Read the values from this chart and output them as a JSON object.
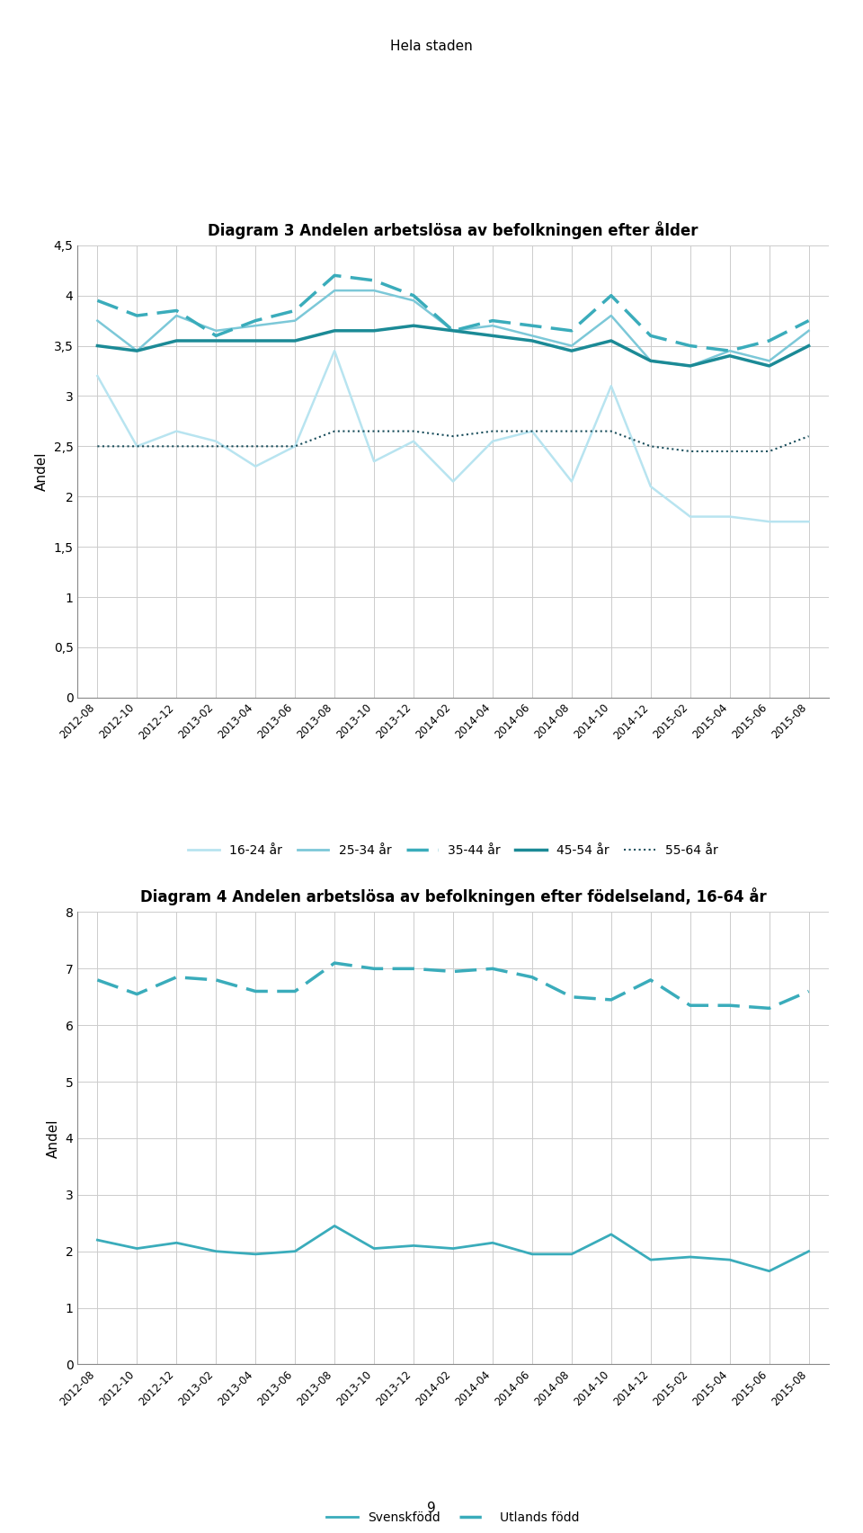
{
  "title_main": "Hela staden",
  "page_number": "9",
  "chart1_title": "Diagram 3 Andelen arbetslösa av befolkningen efter ålder",
  "chart1_ylabel": "Andel",
  "chart1_ylim": [
    0,
    4.5
  ],
  "chart1_yticks": [
    0,
    0.5,
    1,
    1.5,
    2,
    2.5,
    3,
    3.5,
    4,
    4.5
  ],
  "chart1_ytick_labels": [
    "0",
    "0,5",
    "1",
    "1,5",
    "2",
    "2,5",
    "3",
    "3,5",
    "4",
    "4,5"
  ],
  "chart2_title": "Diagram 4 Andelen arbetslösa av befolkningen efter födelseland, 16-64 år",
  "chart2_ylabel": "Andel",
  "chart2_ylim": [
    0,
    8
  ],
  "chart2_yticks": [
    0,
    1,
    2,
    3,
    4,
    5,
    6,
    7,
    8
  ],
  "chart2_ytick_labels": [
    "0",
    "1",
    "2",
    "3",
    "4",
    "5",
    "6",
    "7",
    "8"
  ],
  "x_labels": [
    "2012-08",
    "2012-10",
    "2012-12",
    "2013-02",
    "2013-04",
    "2013-06",
    "2013-08",
    "2013-10",
    "2013-12",
    "2014-02",
    "2014-04",
    "2014-06",
    "2014-08",
    "2014-10",
    "2014-12",
    "2015-02",
    "2015-04",
    "2015-06",
    "2015-08"
  ],
  "series_16_24": [
    3.2,
    2.5,
    2.65,
    2.55,
    2.3,
    2.5,
    3.45,
    2.35,
    2.55,
    2.15,
    2.55,
    2.65,
    2.15,
    3.1,
    2.1,
    1.8,
    1.8,
    1.75,
    1.75
  ],
  "series_25_34": [
    3.75,
    3.45,
    3.8,
    3.65,
    3.7,
    3.75,
    4.05,
    4.05,
    3.95,
    3.65,
    3.7,
    3.6,
    3.5,
    3.8,
    3.35,
    3.3,
    3.45,
    3.35,
    3.65
  ],
  "series_35_44": [
    3.95,
    3.8,
    3.85,
    3.6,
    3.75,
    3.85,
    4.2,
    4.15,
    4.0,
    3.65,
    3.75,
    3.7,
    3.65,
    4.0,
    3.6,
    3.5,
    3.45,
    3.55,
    3.75
  ],
  "series_45_54": [
    3.5,
    3.45,
    3.55,
    3.55,
    3.55,
    3.55,
    3.65,
    3.65,
    3.7,
    3.65,
    3.6,
    3.55,
    3.45,
    3.55,
    3.35,
    3.3,
    3.4,
    3.3,
    3.5
  ],
  "series_55_64": [
    2.5,
    2.5,
    2.5,
    2.5,
    2.5,
    2.5,
    2.65,
    2.65,
    2.65,
    2.6,
    2.65,
    2.65,
    2.65,
    2.65,
    2.5,
    2.45,
    2.45,
    2.45,
    2.6
  ],
  "series_svenskfodd": [
    2.2,
    2.05,
    2.15,
    2.0,
    1.95,
    2.0,
    2.45,
    2.05,
    2.1,
    2.05,
    2.15,
    1.95,
    1.95,
    2.3,
    1.85,
    1.9,
    1.85,
    1.65,
    2.0
  ],
  "series_utlandsfodd": [
    6.8,
    6.55,
    6.85,
    6.8,
    6.6,
    6.6,
    7.1,
    7.0,
    7.0,
    6.95,
    7.0,
    6.85,
    6.5,
    6.45,
    6.8,
    6.35,
    6.35,
    6.3,
    6.6
  ],
  "color_16_24": "#B8E4F0",
  "color_25_34": "#7CC8D8",
  "color_35_44": "#3AACBB",
  "color_45_54": "#1B8A96",
  "color_55_64": "#1A4E5C",
  "color_svenskfodd": "#3AACBB",
  "color_utlandsfodd": "#3AACBB",
  "legend1_labels": [
    "16-24 år",
    "25-34 år",
    "35-44 år",
    "45-54 år",
    "55-64 år"
  ],
  "legend2_labels": [
    "Svenskfödd",
    "Utlands född"
  ],
  "background_color": "#ffffff",
  "grid_color": "#cccccc"
}
